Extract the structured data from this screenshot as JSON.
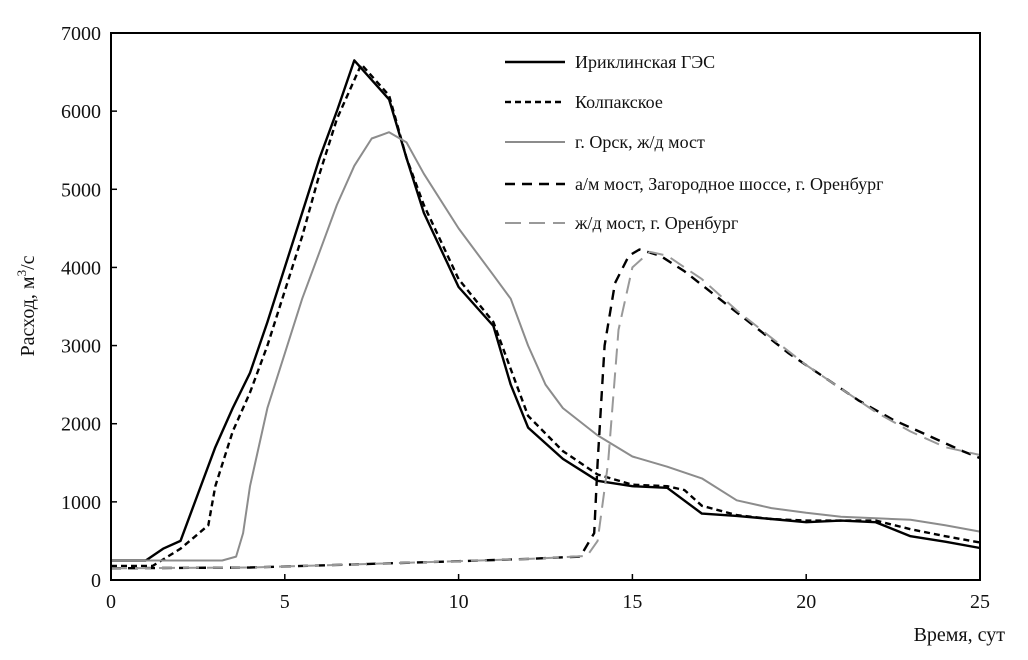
{
  "chart_data": {
    "type": "line",
    "title": "",
    "xlabel": "Время, сут",
    "ylabel": "Расход, м",
    "ylabel_sup": "3",
    "ylabel_tail": "/с",
    "xlim": [
      0,
      25
    ],
    "ylim": [
      0,
      7000
    ],
    "xticks": [
      "0",
      "5",
      "10",
      "15",
      "20",
      "25"
    ],
    "yticks": [
      "0",
      "1000",
      "2000",
      "3000",
      "4000",
      "5000",
      "6000",
      "7000"
    ],
    "grid": false,
    "legend_position": "top-right",
    "series": [
      {
        "name": "Ириклинская ГЭС",
        "color": "#000000",
        "dash": "solid",
        "x": [
          0,
          1,
          1.5,
          2,
          2.5,
          3,
          3.5,
          4,
          4.5,
          5,
          5.5,
          6,
          6.5,
          7,
          7.5,
          8,
          8.5,
          9,
          10,
          11,
          11.5,
          12,
          13,
          14,
          15,
          16,
          17,
          18,
          19,
          20,
          21,
          22,
          23,
          24,
          25
        ],
        "y": [
          250,
          250,
          400,
          500,
          1100,
          1700,
          2200,
          2650,
          3300,
          4000,
          4700,
          5400,
          6000,
          6650,
          6400,
          6150,
          5400,
          4700,
          3750,
          3250,
          2500,
          1950,
          1550,
          1270,
          1200,
          1180,
          850,
          820,
          780,
          740,
          760,
          740,
          560,
          490,
          410
        ]
      },
      {
        "name": "Колпакское",
        "color": "#000000",
        "dash": "short",
        "x": [
          0,
          1.2,
          2,
          2.8,
          3,
          3.5,
          4,
          4.5,
          5,
          5.5,
          6,
          6.5,
          7.2,
          8,
          8.5,
          9,
          10,
          11,
          11.5,
          12,
          13,
          14,
          15,
          16,
          16.5,
          17,
          18,
          19,
          20,
          21,
          22,
          23,
          24,
          25
        ],
        "y": [
          180,
          180,
          400,
          700,
          1200,
          1900,
          2400,
          3000,
          3700,
          4400,
          5200,
          5900,
          6600,
          6200,
          5400,
          4800,
          3850,
          3300,
          2700,
          2100,
          1650,
          1350,
          1220,
          1200,
          1150,
          950,
          830,
          780,
          760,
          760,
          760,
          650,
          560,
          480
        ]
      },
      {
        "name": "г. Орск, ж/д мост",
        "color": "#8c8c8c",
        "dash": "solid",
        "x": [
          0,
          3.2,
          3.6,
          3.8,
          4,
          4.5,
          5,
          5.5,
          6,
          6.5,
          7,
          7.5,
          8,
          8.5,
          9,
          10,
          11,
          11.5,
          12,
          12.5,
          13,
          14,
          15,
          16,
          17,
          18,
          19,
          20,
          21,
          22,
          23,
          24,
          25
        ],
        "y": [
          250,
          250,
          300,
          600,
          1200,
          2200,
          2900,
          3600,
          4200,
          4800,
          5300,
          5650,
          5730,
          5600,
          5200,
          4500,
          3900,
          3600,
          3000,
          2500,
          2200,
          1850,
          1580,
          1450,
          1300,
          1020,
          920,
          860,
          810,
          790,
          770,
          700,
          620
        ]
      },
      {
        "name": "а/м мост, Загородное шоссе, г. Оренбург",
        "color": "#000000",
        "dash": "long",
        "x": [
          0,
          4,
          7,
          10,
          12,
          13,
          13.5,
          13.9,
          14,
          14.2,
          14.5,
          14.9,
          15.2,
          15.8,
          16.5,
          17.5,
          18.5,
          19.5,
          20.5,
          21.5,
          22.5,
          23.5,
          24.5,
          25
        ],
        "y": [
          150,
          160,
          200,
          240,
          270,
          290,
          300,
          600,
          1500,
          3000,
          3800,
          4150,
          4230,
          4150,
          3950,
          3600,
          3250,
          2900,
          2600,
          2300,
          2050,
          1850,
          1650,
          1560
        ]
      },
      {
        "name": "ж/д мост, г. Оренбург",
        "color": "#999999",
        "dash": "longgap",
        "x": [
          0,
          4,
          7,
          10,
          12,
          13,
          13.7,
          14,
          14.3,
          14.6,
          15,
          15.5,
          16,
          17,
          18,
          19,
          20,
          21,
          22,
          23,
          24,
          25
        ],
        "y": [
          150,
          160,
          200,
          240,
          270,
          290,
          310,
          500,
          1500,
          3200,
          4000,
          4200,
          4150,
          3850,
          3450,
          3100,
          2750,
          2450,
          2150,
          1900,
          1700,
          1600
        ]
      }
    ]
  }
}
